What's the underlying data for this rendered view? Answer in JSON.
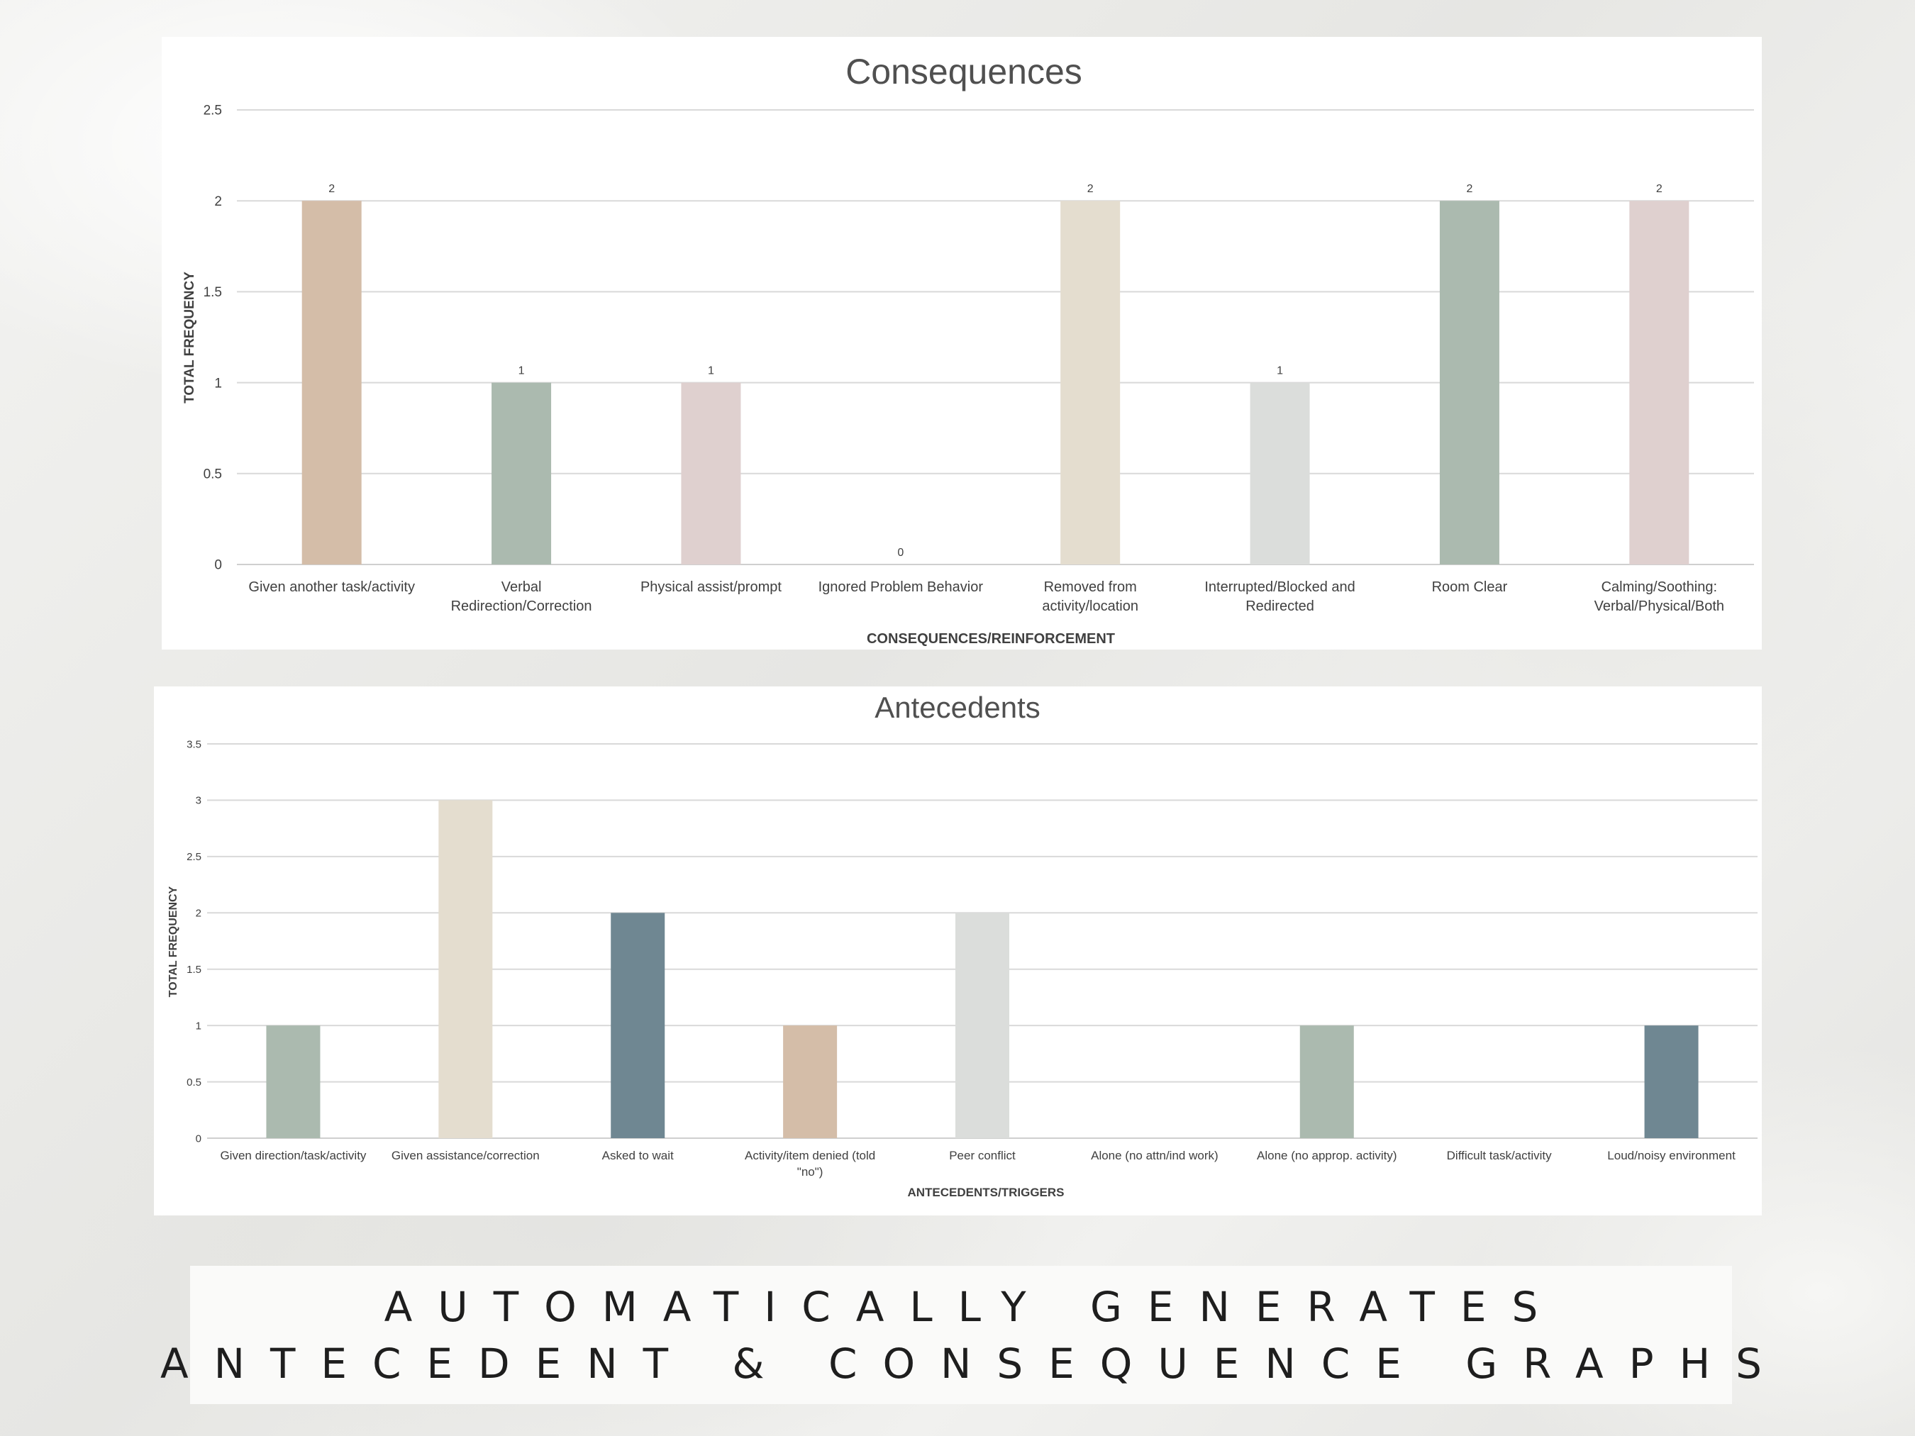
{
  "charts": [
    {
      "id": "consequences",
      "chart_data": {
        "type": "bar",
        "title": "Consequences",
        "xlabel": "CONSEQUENCES/REINFORCEMENT",
        "ylabel": "TOTAL FREQUENCY",
        "ylim": [
          0,
          2.5
        ],
        "yticks": [
          "0",
          "0.5",
          "1",
          "1.5",
          "2",
          "2.5"
        ],
        "grid": true,
        "data_labels": true,
        "categories": [
          [
            "Given another task/activity"
          ],
          [
            "Verbal",
            "Redirection/Correction"
          ],
          [
            "Physical assist/prompt"
          ],
          [
            "Ignored Problem Behavior"
          ],
          [
            "Removed from",
            "activity/location"
          ],
          [
            "Interrupted/Blocked and",
            "Redirected"
          ],
          [
            "Room Clear"
          ],
          [
            "Calming/Soothing:",
            "Verbal/Physical/Both"
          ]
        ],
        "values": [
          2,
          1,
          1,
          0,
          2,
          1,
          2,
          2
        ],
        "colors": [
          "#d4bda8",
          "#abbaaf",
          "#dfd0cf",
          "#d4bda8",
          "#e4ddcf",
          "#dbdddb",
          "#abbaaf",
          "#dfd0cf"
        ]
      }
    },
    {
      "id": "antecedents",
      "chart_data": {
        "type": "bar",
        "title": "Antecedents",
        "xlabel": "ANTECEDENTS/TRIGGERS",
        "ylabel": "TOTAL FREQUENCY",
        "ylim": [
          0,
          3.5
        ],
        "yticks": [
          "0",
          "0.5",
          "1",
          "1.5",
          "2",
          "2.5",
          "3",
          "3.5"
        ],
        "grid": true,
        "data_labels": false,
        "categories": [
          [
            "Given direction/task/activity"
          ],
          [
            "Given assistance/correction"
          ],
          [
            "Asked to wait"
          ],
          [
            "Activity/item denied (told",
            "\"no\")"
          ],
          [
            "Peer conflict"
          ],
          [
            "Alone (no attn/ind work)"
          ],
          [
            "Alone (no approp. activity)"
          ],
          [
            "Difficult task/activity"
          ],
          [
            "Loud/noisy environment"
          ]
        ],
        "values": [
          1,
          3,
          2,
          1,
          2,
          0,
          1,
          0,
          1
        ],
        "colors": [
          "#abbaaf",
          "#e4ddcf",
          "#6f8792",
          "#d4bda8",
          "#dbdddb",
          "#dfd0cf",
          "#abbaaf",
          "#e4ddcf",
          "#6f8792"
        ]
      }
    }
  ],
  "banner": {
    "line1": "AUTOMATICALLY GENERATES",
    "line2": "ANTECEDENT & CONSEQUENCE GRAPHS"
  }
}
